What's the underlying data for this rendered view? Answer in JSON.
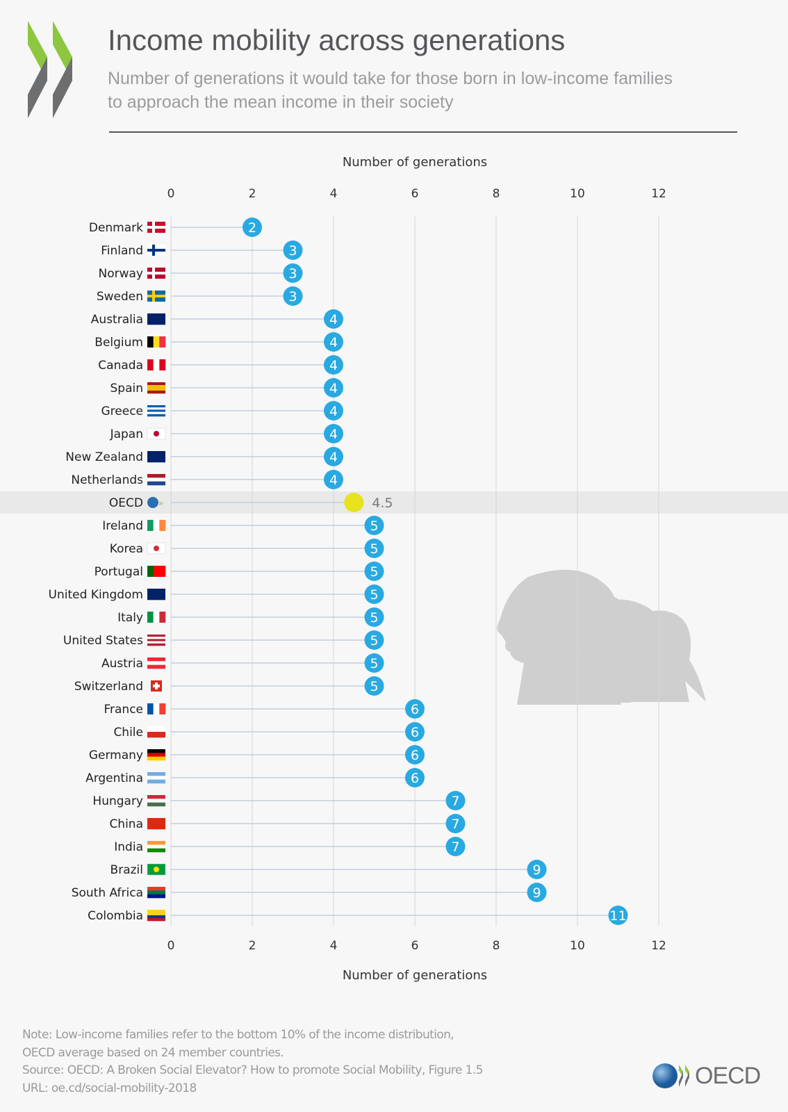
{
  "header": {
    "title": "Income mobility across generations",
    "subtitle_line1": "Number of generations it would take for those born in low-income families",
    "subtitle_line2": "to approach the mean income in their society"
  },
  "footer": {
    "note1": "Note: Low-income families refer to the bottom 10% of the income distribution,",
    "note2": "OECD average based on 24 member countries.",
    "source": "Source: OECD: A Broken Social Elevator? How to promote Social Mobility, Figure 1.5",
    "url": "URL: oe.cd/social-mobility-2018",
    "logo_text": "OECD"
  },
  "colors": {
    "bubble": "#29a9e1",
    "oecd_bubble": "#e6e21e",
    "highlight_band": "#e9e9ea",
    "logo_green": "#8dc63f",
    "logo_grey": "#6d6e70"
  },
  "chart_data": {
    "type": "lollipop",
    "xlabel": "Number of generations",
    "xlim": [
      0,
      12
    ],
    "xticks": [
      0,
      2,
      4,
      6,
      8,
      10,
      12
    ],
    "grid": "vertical",
    "categories": [
      "Denmark",
      "Finland",
      "Norway",
      "Sweden",
      "Australia",
      "Belgium",
      "Canada",
      "Spain",
      "Greece",
      "Japan",
      "New Zealand",
      "Netherlands",
      "OECD",
      "Ireland",
      "Korea",
      "Portugal",
      "United Kingdom",
      "Italy",
      "United States",
      "Austria",
      "Switzerland",
      "France",
      "Chile",
      "Germany",
      "Argentina",
      "Hungary",
      "China",
      "India",
      "Brazil",
      "South Africa",
      "Colombia"
    ],
    "values": [
      2,
      3,
      3,
      3,
      4,
      4,
      4,
      4,
      4,
      4,
      4,
      4,
      4.5,
      5,
      5,
      5,
      5,
      5,
      5,
      5,
      5,
      6,
      6,
      6,
      6,
      7,
      7,
      7,
      9,
      9,
      11
    ],
    "value_labels": [
      "2",
      "3",
      "3",
      "3",
      "4",
      "4",
      "4",
      "4",
      "4",
      "4",
      "4",
      "4",
      "4.5",
      "5",
      "5",
      "5",
      "5",
      "5",
      "5",
      "5",
      "5",
      "6",
      "6",
      "6",
      "6",
      "7",
      "7",
      "7",
      "9",
      "9",
      "11"
    ],
    "highlight": "OECD"
  }
}
